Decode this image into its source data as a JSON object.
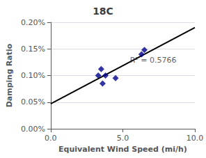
{
  "chart_data": {
    "type": "scatter",
    "title": "18C",
    "xlabel": "Equivalent Wind Speed (mi/h)",
    "ylabel": "Damping Ratio",
    "series": [
      {
        "type": "line",
        "x": [
          0.0,
          10.0
        ],
        "values": [
          0.00047,
          0.0019
        ],
        "color": "#000000",
        "line_style": "solid"
      },
      {
        "type": "scatter",
        "x": [
          3.3,
          3.5,
          3.6,
          3.8,
          4.5,
          6.3,
          6.5
        ],
        "values": [
          0.001,
          0.00112,
          0.00085,
          0.001,
          0.00095,
          0.0014,
          0.00148
        ],
        "color": "#00008B",
        "marker": "diamond"
      }
    ],
    "annotations": [
      {
        "text": "R² = 0.5766",
        "x": 5.5,
        "y": 0.00122
      }
    ],
    "xlim": [
      0.0,
      10.0
    ],
    "xticks": [
      {
        "value": 0.0,
        "label": "0.0"
      },
      {
        "value": 5.0,
        "label": "5.0"
      },
      {
        "value": 10.0,
        "label": "10.0"
      }
    ],
    "ylim": [
      0.0,
      0.002
    ],
    "yticks": [
      {
        "value": 0.0,
        "label": "0.00%"
      },
      {
        "value": 0.0005,
        "label": "0.05%"
      },
      {
        "value": 0.001,
        "label": "0.10%"
      },
      {
        "value": 0.0015,
        "label": "0.15%"
      },
      {
        "value": 0.002,
        "label": "0.20%"
      }
    ],
    "grid": true
  }
}
